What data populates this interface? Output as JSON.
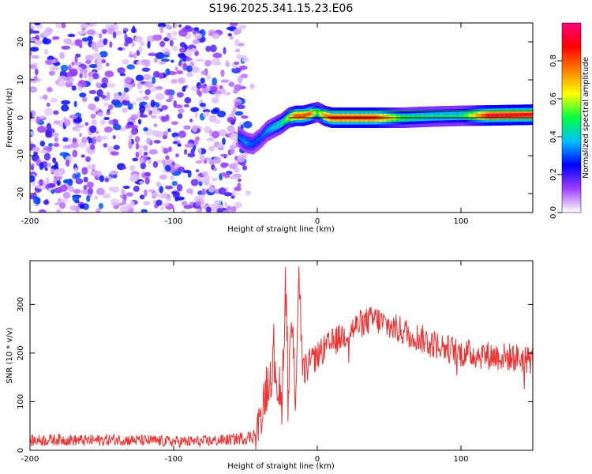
{
  "title": "S196.2025.341.15.23.E06",
  "chart_data": [
    {
      "type": "heatmap",
      "title": "",
      "xlabel": "Height of straight line (km)",
      "ylabel": "Frequency (Hz)",
      "xlim": [
        -200,
        150
      ],
      "ylim": [
        -25,
        25
      ],
      "xticks": [
        -200,
        -100,
        0,
        100
      ],
      "yticks": [
        -20,
        -10,
        0,
        10,
        20
      ],
      "grid": false,
      "colorbar": {
        "label": "Normalized spectral amplitude",
        "range": [
          0,
          1
        ],
        "ticks": [
          "0.0",
          "0.2",
          "0.4",
          "0.6",
          "0.8"
        ],
        "colormap": [
          "#ffffff",
          "#a040ff",
          "#0000ff",
          "#00c0ff",
          "#00ff40",
          "#ffff00",
          "#ff8000",
          "#ff0000",
          "#ff0080"
        ]
      },
      "noise_region": {
        "x_from": -200,
        "x_to": -50,
        "y_from": -25,
        "y_to": 25,
        "typical_amplitude": 0.15
      },
      "ridge": {
        "x": [
          -55,
          -50,
          -45,
          -40,
          -35,
          -30,
          -25,
          -20,
          -15,
          -10,
          -5,
          0,
          5,
          10,
          20,
          40,
          60,
          80,
          100,
          120,
          150
        ],
        "y": [
          -5,
          -6.5,
          -7,
          -5.5,
          -3.5,
          -2.5,
          -1.5,
          0,
          0.5,
          0.5,
          1,
          1.5,
          0.5,
          0,
          0,
          0,
          0,
          0.3,
          0.5,
          0.6,
          0.8
        ],
        "amplitude": [
          0.3,
          0.35,
          0.3,
          0.3,
          0.35,
          0.4,
          0.45,
          0.6,
          0.8,
          0.8,
          0.8,
          0.5,
          0.75,
          0.85,
          0.85,
          0.85,
          0.5,
          0.45,
          0.45,
          0.9,
          0.9
        ]
      },
      "reference_lines": [
        {
          "y": 0,
          "x_from": -20,
          "x_to": 150,
          "color": "#000000"
        },
        {
          "y": 1.8,
          "x_from": -20,
          "x_to": 150,
          "color": "#00aa00"
        }
      ]
    },
    {
      "type": "line",
      "title": "",
      "xlabel": "Height of straight line (km)",
      "ylabel": "SNR (10 * v/v)",
      "xlim": [
        -200,
        150
      ],
      "ylim": [
        0,
        390
      ],
      "xticks": [
        -200,
        -100,
        0,
        100
      ],
      "yticks": [
        0,
        100,
        200,
        300
      ],
      "grid": false,
      "series": [
        {
          "color": "#ee3333",
          "x": [
            -200,
            -180,
            -160,
            -140,
            -120,
            -100,
            -80,
            -60,
            -45,
            -40,
            -35,
            -30,
            -25,
            -22,
            -20,
            -18,
            -15,
            -13,
            -10,
            -5,
            0,
            10,
            20,
            30,
            40,
            50,
            60,
            80,
            100,
            120,
            140,
            150
          ],
          "y": [
            20,
            22,
            20,
            22,
            20,
            18,
            18,
            22,
            28,
            60,
            140,
            200,
            80,
            350,
            140,
            260,
            120,
            380,
            160,
            180,
            195,
            220,
            240,
            260,
            270,
            255,
            245,
            220,
            200,
            195,
            190,
            185
          ],
          "noise_amplitude": [
            12,
            12,
            12,
            12,
            12,
            12,
            12,
            12,
            15,
            40,
            60,
            70,
            60,
            60,
            60,
            60,
            60,
            60,
            40,
            30,
            30,
            30,
            30,
            30,
            30,
            30,
            30,
            30,
            30,
            30,
            30,
            30
          ]
        }
      ]
    }
  ]
}
